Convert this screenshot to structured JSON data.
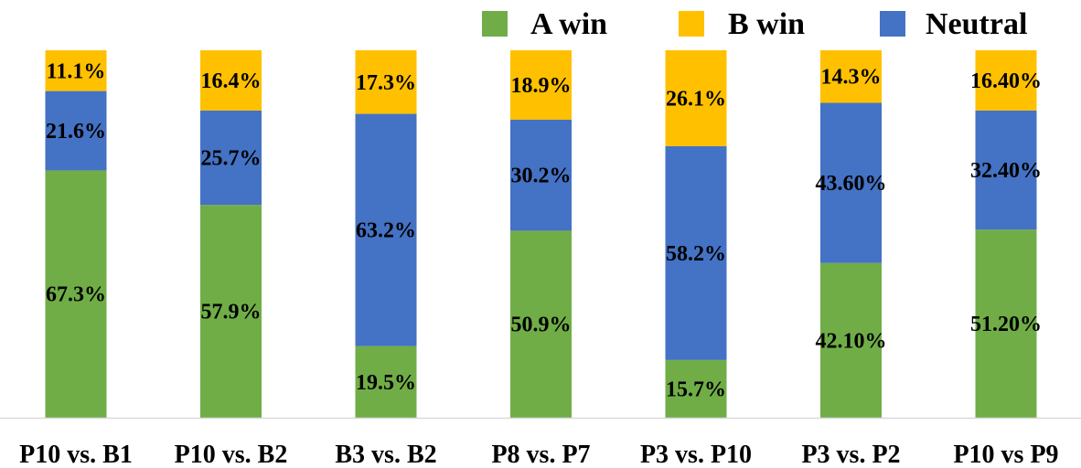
{
  "chart_data": {
    "type": "bar",
    "stacked": true,
    "percent_stacked": true,
    "categories": [
      "P10 vs. B1",
      "P10 vs. B2",
      "B3 vs. B2",
      "P8 vs. P7",
      "P3 vs. P10",
      "P3 vs. P2",
      "P10 vs P9"
    ],
    "series": [
      {
        "name": "A win",
        "color": "#70AD47",
        "values": [
          67.3,
          57.9,
          19.5,
          50.9,
          15.7,
          42.1,
          51.2
        ],
        "labels": [
          "67.3%",
          "57.9%",
          "19.5%",
          "50.9%",
          "15.7%",
          "42.10%",
          "51.20%"
        ]
      },
      {
        "name": "Neutral",
        "color": "#4472C4",
        "values": [
          21.6,
          25.7,
          63.2,
          30.2,
          58.2,
          43.6,
          32.4
        ],
        "labels": [
          "21.6%",
          "25.7%",
          "63.2%",
          "30.2%",
          "58.2%",
          "43.60%",
          "32.40%"
        ]
      },
      {
        "name": "B win",
        "color": "#FFC000",
        "values": [
          11.1,
          16.4,
          17.3,
          18.9,
          26.1,
          14.3,
          16.4
        ],
        "labels": [
          "11.1%",
          "16.4%",
          "17.3%",
          "18.9%",
          "26.1%",
          "14.3%",
          "16.40%"
        ]
      }
    ],
    "legend": {
      "position": "top-right",
      "order": [
        "A win",
        "B win",
        "Neutral"
      ]
    },
    "ylim": [
      0,
      100
    ],
    "grid": false,
    "axis_color": "#D9D9D9"
  }
}
